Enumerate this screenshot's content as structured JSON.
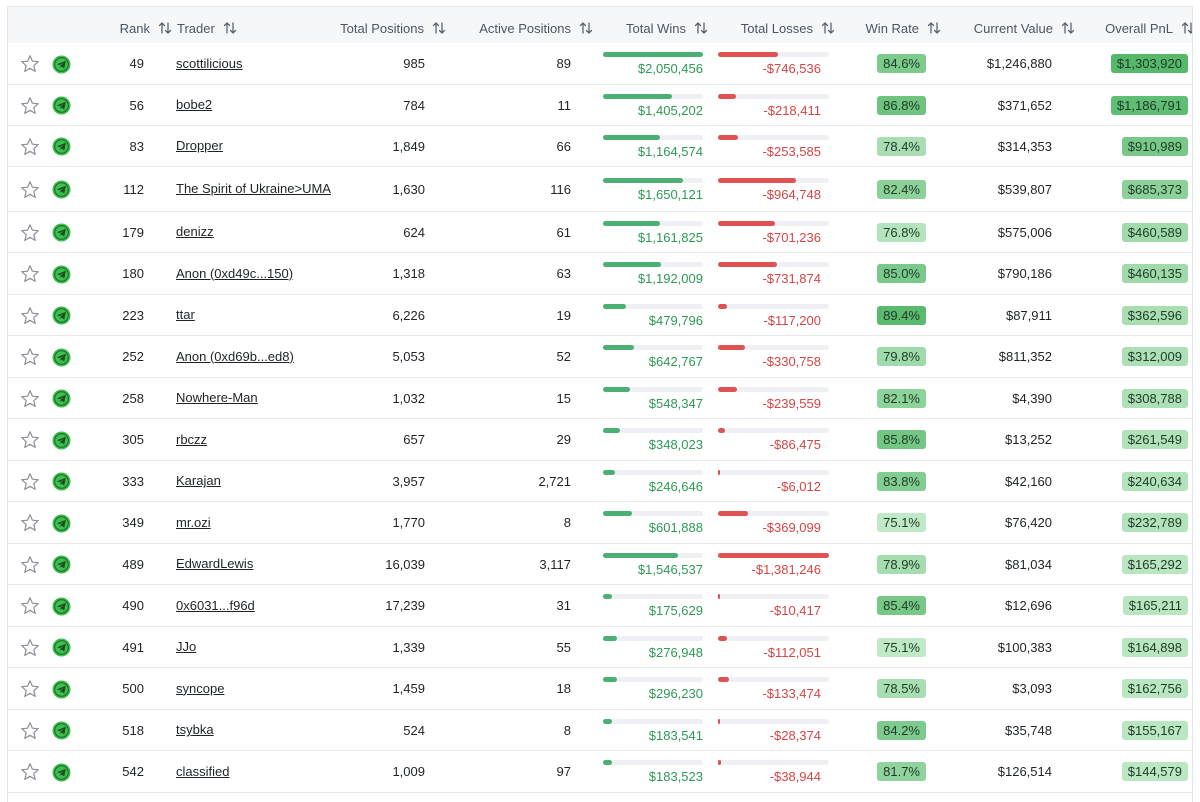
{
  "columns": [
    {
      "key": "rank",
      "label": "Rank"
    },
    {
      "key": "trader",
      "label": "Trader"
    },
    {
      "key": "total_positions",
      "label": "Total Positions"
    },
    {
      "key": "active_positions",
      "label": "Active Positions"
    },
    {
      "key": "total_wins",
      "label": "Total Wins"
    },
    {
      "key": "total_losses",
      "label": "Total Losses"
    },
    {
      "key": "win_rate",
      "label": "Win Rate"
    },
    {
      "key": "current_value",
      "label": "Current Value"
    },
    {
      "key": "overall_pnl",
      "label": "Overall PnL"
    }
  ],
  "icons": {
    "favorite": "star-outline-icon",
    "telegram": "telegram-icon",
    "sort": "sort-arrows-icon"
  },
  "colors": {
    "win": "#2e9a55",
    "loss": "#d64545",
    "win_bar": "#4caf73",
    "loss_bar": "#e05252",
    "pill_green": "#7ccf8e"
  },
  "rows": [
    {
      "rank": "49",
      "trader": "scottilicious",
      "total_positions": "985",
      "active_positions": "89",
      "total_wins": "$2,050,456",
      "wins_level": 1.0,
      "total_losses": "-$746,536",
      "losses_level": 0.54,
      "win_rate": "84.6%",
      "current_value": "$1,246,880",
      "overall_pnl": "$1,303,920",
      "pnl_level": 1.0
    },
    {
      "rank": "56",
      "trader": "bobe2",
      "total_positions": "784",
      "active_positions": "11",
      "total_wins": "$1,405,202",
      "wins_level": 0.69,
      "total_losses": "-$218,411",
      "losses_level": 0.16,
      "win_rate": "86.8%",
      "current_value": "$371,652",
      "overall_pnl": "$1,186,791",
      "pnl_level": 0.91
    },
    {
      "rank": "83",
      "trader": "Dropper",
      "total_positions": "1,849",
      "active_positions": "66",
      "total_wins": "$1,164,574",
      "wins_level": 0.57,
      "total_losses": "-$253,585",
      "losses_level": 0.18,
      "win_rate": "78.4%",
      "current_value": "$314,353",
      "overall_pnl": "$910,989",
      "pnl_level": 0.7
    },
    {
      "rank": "112",
      "trader": "The Spirit of Ukraine>UMA",
      "total_positions": "1,630",
      "active_positions": "116",
      "total_wins": "$1,650,121",
      "wins_level": 0.8,
      "total_losses": "-$964,748",
      "losses_level": 0.7,
      "win_rate": "82.4%",
      "current_value": "$539,807",
      "overall_pnl": "$685,373",
      "pnl_level": 0.53
    },
    {
      "rank": "179",
      "trader": "denizz",
      "total_positions": "624",
      "active_positions": "61",
      "total_wins": "$1,161,825",
      "wins_level": 0.57,
      "total_losses": "-$701,236",
      "losses_level": 0.51,
      "win_rate": "76.8%",
      "current_value": "$575,006",
      "overall_pnl": "$460,589",
      "pnl_level": 0.35
    },
    {
      "rank": "180",
      "trader": "Anon (0xd49c...150)",
      "total_positions": "1,318",
      "active_positions": "63",
      "total_wins": "$1,192,009",
      "wins_level": 0.58,
      "total_losses": "-$731,874",
      "losses_level": 0.53,
      "win_rate": "85.0%",
      "current_value": "$790,186",
      "overall_pnl": "$460,135",
      "pnl_level": 0.35
    },
    {
      "rank": "223",
      "trader": "ttar",
      "total_positions": "6,226",
      "active_positions": "19",
      "total_wins": "$479,796",
      "wins_level": 0.23,
      "total_losses": "-$117,200",
      "losses_level": 0.08,
      "win_rate": "89.4%",
      "current_value": "$87,911",
      "overall_pnl": "$362,596",
      "pnl_level": 0.28
    },
    {
      "rank": "252",
      "trader": "Anon (0xd69b...ed8)",
      "total_positions": "5,053",
      "active_positions": "52",
      "total_wins": "$642,767",
      "wins_level": 0.31,
      "total_losses": "-$330,758",
      "losses_level": 0.24,
      "win_rate": "79.8%",
      "current_value": "$811,352",
      "overall_pnl": "$312,009",
      "pnl_level": 0.24
    },
    {
      "rank": "258",
      "trader": "Nowhere-Man",
      "total_positions": "1,032",
      "active_positions": "15",
      "total_wins": "$548,347",
      "wins_level": 0.27,
      "total_losses": "-$239,559",
      "losses_level": 0.17,
      "win_rate": "82.1%",
      "current_value": "$4,390",
      "overall_pnl": "$308,788",
      "pnl_level": 0.24
    },
    {
      "rank": "305",
      "trader": "rbczz",
      "total_positions": "657",
      "active_positions": "29",
      "total_wins": "$348,023",
      "wins_level": 0.17,
      "total_losses": "-$86,475",
      "losses_level": 0.06,
      "win_rate": "85.8%",
      "current_value": "$13,252",
      "overall_pnl": "$261,549",
      "pnl_level": 0.2
    },
    {
      "rank": "333",
      "trader": "Karajan",
      "total_positions": "3,957",
      "active_positions": "2,721",
      "total_wins": "$246,646",
      "wins_level": 0.12,
      "total_losses": "-$6,012",
      "losses_level": 0.01,
      "win_rate": "83.8%",
      "current_value": "$42,160",
      "overall_pnl": "$240,634",
      "pnl_level": 0.18
    },
    {
      "rank": "349",
      "trader": "mr.ozi",
      "total_positions": "1,770",
      "active_positions": "8",
      "total_wins": "$601,888",
      "wins_level": 0.29,
      "total_losses": "-$369,099",
      "losses_level": 0.27,
      "win_rate": "75.1%",
      "current_value": "$76,420",
      "overall_pnl": "$232,789",
      "pnl_level": 0.18
    },
    {
      "rank": "489",
      "trader": "EdwardLewis",
      "total_positions": "16,039",
      "active_positions": "3,117",
      "total_wins": "$1,546,537",
      "wins_level": 0.75,
      "total_losses": "-$1,381,246",
      "losses_level": 1.0,
      "win_rate": "78.9%",
      "current_value": "$81,034",
      "overall_pnl": "$165,292",
      "pnl_level": 0.13
    },
    {
      "rank": "490",
      "trader": "0x6031...f96d",
      "total_positions": "17,239",
      "active_positions": "31",
      "total_wins": "$175,629",
      "wins_level": 0.09,
      "total_losses": "-$10,417",
      "losses_level": 0.01,
      "win_rate": "85.4%",
      "current_value": "$12,696",
      "overall_pnl": "$165,211",
      "pnl_level": 0.13
    },
    {
      "rank": "491",
      "trader": "JJo",
      "total_positions": "1,339",
      "active_positions": "55",
      "total_wins": "$276,948",
      "wins_level": 0.14,
      "total_losses": "-$112,051",
      "losses_level": 0.08,
      "win_rate": "75.1%",
      "current_value": "$100,383",
      "overall_pnl": "$164,898",
      "pnl_level": 0.13
    },
    {
      "rank": "500",
      "trader": "syncope",
      "total_positions": "1,459",
      "active_positions": "18",
      "total_wins": "$296,230",
      "wins_level": 0.14,
      "total_losses": "-$133,474",
      "losses_level": 0.1,
      "win_rate": "78.5%",
      "current_value": "$3,093",
      "overall_pnl": "$162,756",
      "pnl_level": 0.12
    },
    {
      "rank": "518",
      "trader": "tsybka",
      "total_positions": "524",
      "active_positions": "8",
      "total_wins": "$183,541",
      "wins_level": 0.09,
      "total_losses": "-$28,374",
      "losses_level": 0.02,
      "win_rate": "84.2%",
      "current_value": "$35,748",
      "overall_pnl": "$155,167",
      "pnl_level": 0.12
    },
    {
      "rank": "542",
      "trader": "classified",
      "total_positions": "1,009",
      "active_positions": "97",
      "total_wins": "$183,523",
      "wins_level": 0.09,
      "total_losses": "-$38,944",
      "losses_level": 0.03,
      "win_rate": "81.7%",
      "current_value": "$126,514",
      "overall_pnl": "$144,579",
      "pnl_level": 0.11
    }
  ]
}
